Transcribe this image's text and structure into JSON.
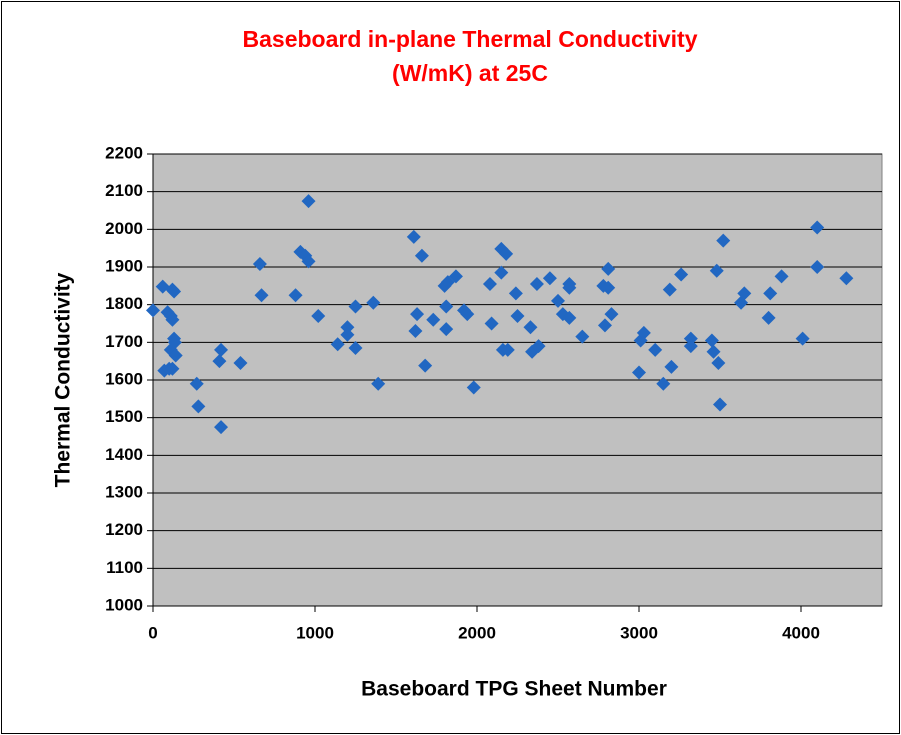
{
  "chart_data": {
    "type": "scatter",
    "title": [
      "Baseboard in-plane Thermal Conductivity",
      "(W/mK) at 25C"
    ],
    "x_label": "Baseboard TPG Sheet Number",
    "y_label": "Thermal Conductivity",
    "color": "#2167c2",
    "plot_background": "#c0c0c0",
    "grid": true,
    "xlim": [
      0,
      4500
    ],
    "xticks": [
      0,
      1000,
      2000,
      3000,
      4000
    ],
    "ylim": [
      1000,
      2200
    ],
    "yticks": [
      1000,
      1100,
      1200,
      1300,
      1400,
      1500,
      1600,
      1700,
      1800,
      1900,
      2000,
      2100,
      2200
    ],
    "x": [
      0,
      60,
      90,
      70,
      110,
      120,
      110,
      100,
      120,
      130,
      130,
      135,
      140,
      120,
      270,
      280,
      410,
      420,
      420,
      540,
      660,
      670,
      880,
      910,
      940,
      960,
      960,
      1020,
      1140,
      1200,
      1200,
      1250,
      1250,
      1360,
      1390,
      1610,
      1620,
      1630,
      1660,
      1680,
      1730,
      1800,
      1810,
      1820,
      1810,
      1870,
      1920,
      1940,
      1980,
      2080,
      2090,
      2150,
      2150,
      2180,
      2160,
      2190,
      2240,
      2250,
      2330,
      2340,
      2370,
      2380,
      2450,
      2500,
      2530,
      2570,
      2570,
      2570,
      2650,
      2780,
      2790,
      2810,
      2810,
      2830,
      3000,
      3010,
      3030,
      3100,
      3150,
      3190,
      3200,
      3260,
      3320,
      3320,
      3450,
      3460,
      3480,
      3490,
      3500,
      3520,
      3630,
      3650,
      3810,
      3800,
      3880,
      4010,
      4100,
      4100,
      4280
    ],
    "values": [
      1785,
      1848,
      1780,
      1625,
      1770,
      1760,
      1680,
      1630,
      1840,
      1835,
      1710,
      1700,
      1665,
      1630,
      1590,
      1530,
      1650,
      1680,
      1475,
      1645,
      1908,
      1825,
      1825,
      1940,
      1930,
      2075,
      1915,
      1770,
      1695,
      1740,
      1720,
      1795,
      1685,
      1805,
      1590,
      1980,
      1730,
      1775,
      1930,
      1638,
      1760,
      1850,
      1795,
      1860,
      1735,
      1875,
      1785,
      1775,
      1580,
      1855,
      1750,
      1885,
      1948,
      1935,
      1680,
      1680,
      1830,
      1770,
      1740,
      1675,
      1855,
      1690,
      1870,
      1810,
      1775,
      1855,
      1845,
      1765,
      1715,
      1850,
      1745,
      1845,
      1895,
      1775,
      1620,
      1705,
      1725,
      1680,
      1590,
      1840,
      1635,
      1880,
      1710,
      1690,
      1705,
      1675,
      1890,
      1645,
      1535,
      1970,
      1805,
      1830,
      1830,
      1765,
      1875,
      1710,
      2005,
      1900,
      1870
    ]
  }
}
